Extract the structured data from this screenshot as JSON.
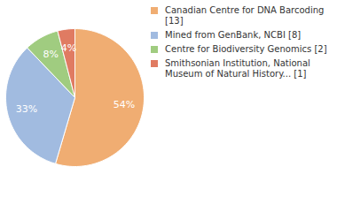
{
  "chart_data": {
    "type": "pie",
    "categories": [
      "Canadian Centre for DNA Barcoding [13]",
      "Mined from GenBank, NCBI [8]",
      "Centre for Biodiversity Genomics [2]",
      "Smithsonian Institution, National Museum of Natural History... [1]"
    ],
    "values": [
      54,
      33,
      8,
      4
    ],
    "value_labels": [
      "54%",
      "33%",
      "8%",
      "4%"
    ],
    "colors": [
      "#f0ad72",
      "#a1bbe0",
      "#a0cc80",
      "#e07b62"
    ],
    "data_labels": true,
    "legend": "right"
  }
}
